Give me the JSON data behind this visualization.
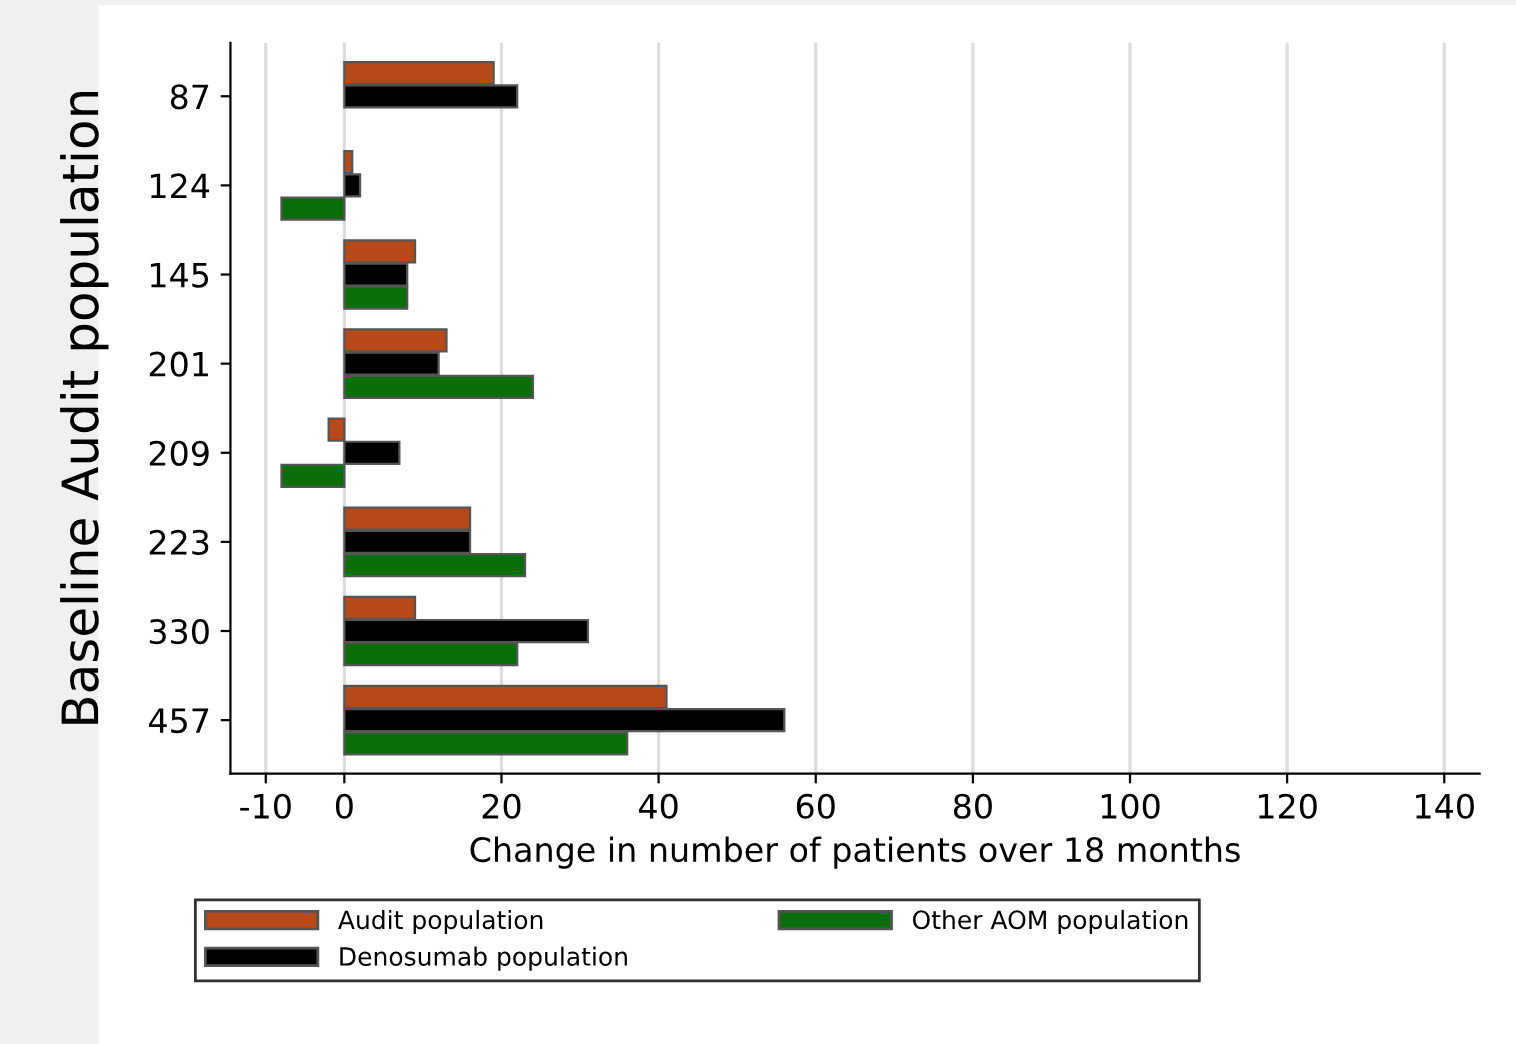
{
  "chart_data": {
    "type": "bar",
    "orientation": "horizontal",
    "xlabel": "Change in number of patients over 18 months",
    "ylabel": "Baseline Audit population",
    "categories": [
      "87",
      "124",
      "145",
      "201",
      "209",
      "223",
      "330",
      "457"
    ],
    "series": [
      {
        "name": "Audit population",
        "color": "#b84a1a",
        "values": [
          19,
          1,
          9,
          13,
          -2,
          16,
          9,
          41
        ]
      },
      {
        "name": "Denosumab population",
        "color": "#000000",
        "values": [
          22,
          2,
          8,
          12,
          7,
          16,
          31,
          56
        ]
      },
      {
        "name": "Other AOM population",
        "color": "#0a6e0a",
        "values": [
          null,
          -8,
          8,
          24,
          -8,
          23,
          22,
          36
        ]
      }
    ],
    "xlim": [
      -14.5,
      144.5
    ],
    "xticks": [
      -10,
      0,
      20,
      40,
      60,
      80,
      100,
      120,
      140
    ],
    "grid": "x",
    "legend": "bottom"
  }
}
